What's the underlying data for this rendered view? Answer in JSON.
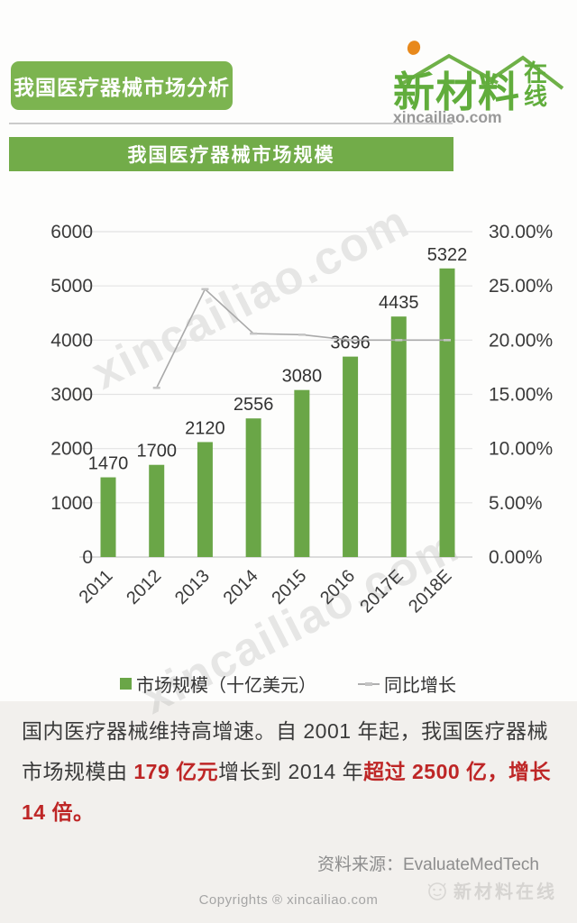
{
  "header": {
    "banner_title": "我国医疗器械市场分析",
    "logo": {
      "brand": "新材料",
      "brand_suffix_1": "在",
      "brand_suffix_2": "线",
      "domain": "xincailiao.com",
      "dot_color": "#e8891c",
      "green": "#61ad3c"
    }
  },
  "section": {
    "title": "我国医疗器械市场规模"
  },
  "watermark": {
    "text": "xincailiao.com",
    "stamp": "新材料在线"
  },
  "chart_data": {
    "type": "bar",
    "combo": "bar+line",
    "categories": [
      "2011",
      "2012",
      "2013",
      "2014",
      "2015",
      "2016",
      "2017E",
      "2018E"
    ],
    "series": [
      {
        "name": "市场规模（十亿美元）",
        "type": "bar",
        "color": "#6aa647",
        "values": [
          1470,
          1700,
          2120,
          2556,
          3080,
          3696,
          4435,
          5322
        ]
      },
      {
        "name": "同比增长",
        "type": "line",
        "color": "#a9a9a9",
        "unit": "%",
        "values": [
          null,
          15.6,
          24.7,
          20.6,
          20.5,
          20.0,
          20.0,
          20.0
        ]
      }
    ],
    "left_axis": {
      "min": 0,
      "max": 6000,
      "step": 1000,
      "ticks": [
        "0",
        "1000",
        "2000",
        "3000",
        "4000",
        "5000",
        "6000"
      ]
    },
    "right_axis": {
      "min": 0,
      "max": 30,
      "step": 5,
      "ticks": [
        "0.00%",
        "5.00%",
        "10.00%",
        "15.00%",
        "20.00%",
        "25.00%",
        "30.00%"
      ]
    },
    "grid": true,
    "legend_position": "bottom"
  },
  "paragraph": {
    "part1": "国内医疗器械维持高增速。自 2001 年起，我国医疗器械市场规模由 ",
    "highlight1": "179 亿元",
    "part2": "增长到 2014 年",
    "highlight2": "超过 2500 亿，增长 14 倍。"
  },
  "source": {
    "label": "资料来源：EvaluateMedTech"
  },
  "footer": {
    "copyright": "Copyrights ® xincailiao.com"
  },
  "colors": {
    "banner_green": "#7cb450",
    "section_green": "#72ac49",
    "bar_green": "#6aa647",
    "highlight_red": "#be2626"
  }
}
